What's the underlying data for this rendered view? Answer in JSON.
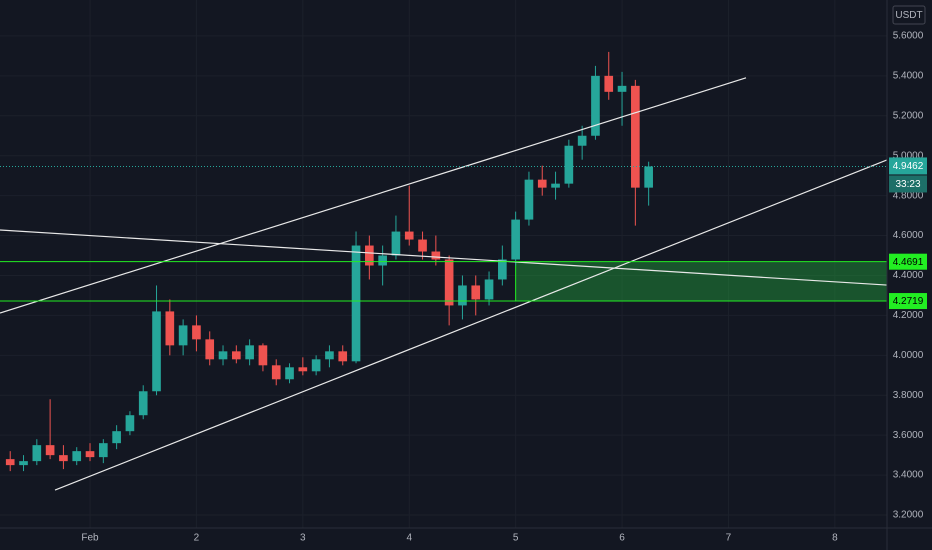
{
  "chart_data": {
    "type": "candlestick",
    "currency": "USDT",
    "x": [
      0.25,
      0.375,
      0.5,
      0.625,
      0.75,
      0.875,
      1.0,
      1.125,
      1.25,
      1.375,
      1.5,
      1.625,
      1.75,
      1.875,
      2.0,
      2.125,
      2.25,
      2.375,
      2.5,
      2.625,
      2.75,
      2.875,
      3.0,
      3.125,
      3.25,
      3.375,
      3.5,
      3.625,
      3.75,
      3.875,
      4.0,
      4.125,
      4.25,
      4.375,
      4.5,
      4.625,
      4.75,
      4.875,
      5.0,
      5.125,
      5.25,
      5.375,
      5.5,
      5.625,
      5.75,
      5.875,
      6.0,
      6.125,
      6.25
    ],
    "open": [
      3.48,
      3.45,
      3.47,
      3.55,
      3.5,
      3.47,
      3.52,
      3.49,
      3.56,
      3.62,
      3.7,
      3.82,
      4.22,
      4.05,
      4.15,
      4.08,
      3.98,
      4.02,
      3.98,
      4.05,
      3.95,
      3.88,
      3.94,
      3.92,
      3.98,
      4.02,
      3.97,
      4.55,
      4.45,
      4.5,
      4.62,
      4.58,
      4.52,
      4.48,
      4.25,
      4.35,
      4.28,
      4.38,
      4.48,
      4.68,
      4.88,
      4.84,
      4.86,
      5.05,
      5.1,
      5.4,
      5.32,
      5.35,
      4.84
    ],
    "high": [
      3.52,
      3.5,
      3.58,
      3.78,
      3.55,
      3.54,
      3.56,
      3.58,
      3.65,
      3.72,
      3.85,
      4.35,
      4.28,
      4.18,
      4.2,
      4.12,
      4.05,
      4.05,
      4.08,
      4.06,
      3.98,
      3.96,
      3.99,
      4.0,
      4.05,
      4.05,
      4.62,
      4.6,
      4.55,
      4.7,
      4.85,
      4.62,
      4.6,
      4.5,
      4.4,
      4.4,
      4.42,
      4.55,
      4.72,
      4.92,
      4.95,
      4.92,
      5.08,
      5.15,
      5.45,
      5.52,
      5.42,
      5.38,
      4.97
    ],
    "low": [
      3.42,
      3.42,
      3.45,
      3.48,
      3.43,
      3.45,
      3.47,
      3.46,
      3.53,
      3.6,
      3.68,
      3.8,
      4.0,
      4.0,
      4.02,
      3.95,
      3.95,
      3.96,
      3.95,
      3.92,
      3.85,
      3.86,
      3.9,
      3.9,
      3.94,
      3.95,
      3.96,
      4.38,
      4.35,
      4.48,
      4.55,
      4.48,
      4.45,
      4.15,
      4.18,
      4.2,
      4.25,
      4.35,
      4.45,
      4.65,
      4.8,
      4.78,
      4.84,
      4.98,
      5.08,
      5.28,
      5.15,
      4.65,
      4.75
    ],
    "close": [
      3.45,
      3.47,
      3.55,
      3.5,
      3.47,
      3.52,
      3.49,
      3.56,
      3.62,
      3.7,
      3.82,
      4.22,
      4.05,
      4.15,
      4.08,
      3.98,
      4.02,
      3.98,
      4.05,
      3.95,
      3.88,
      3.94,
      3.92,
      3.98,
      4.02,
      3.97,
      4.55,
      4.45,
      4.5,
      4.62,
      4.58,
      4.52,
      4.48,
      4.25,
      4.35,
      4.28,
      4.38,
      4.48,
      4.68,
      4.88,
      4.84,
      4.86,
      5.05,
      5.1,
      5.4,
      5.32,
      5.35,
      4.84,
      4.9462
    ],
    "up_color": "#26a69a",
    "down_color": "#ef5350",
    "xlim": [
      0.154,
      8.49
    ],
    "ylim": [
      3.135,
      5.78
    ],
    "xticks": [
      {
        "value": 1,
        "label": "Feb"
      },
      2,
      3,
      4,
      5,
      6,
      7,
      8
    ],
    "yticks": [
      {
        "value": 3.2,
        "label": "3.2000"
      },
      {
        "value": 3.4,
        "label": "3.4000"
      },
      {
        "value": 3.6,
        "label": "3.6000"
      },
      {
        "value": 3.8,
        "label": "3.8000"
      },
      {
        "value": 4.0,
        "label": "4.0000"
      },
      {
        "value": 4.2,
        "label": "4.2000"
      },
      {
        "value": 4.4,
        "label": "4.4000"
      },
      {
        "value": 4.6,
        "label": "4.6000"
      },
      {
        "value": 4.8,
        "label": "4.8000"
      },
      {
        "value": 5.0,
        "label": "5.0000"
      },
      {
        "value": 5.2,
        "label": "5.2000"
      },
      {
        "value": 5.4,
        "label": "5.4000"
      },
      {
        "value": 5.6,
        "label": "5.6000"
      }
    ],
    "grid": true,
    "trend_lines": [
      {
        "x": [
          0.154,
          7.165
        ],
        "y": [
          4.212,
          5.39
        ]
      },
      {
        "x": [
          0.671,
          8.49
        ],
        "y": [
          3.325,
          4.979
        ]
      },
      {
        "x": [
          0.154,
          8.49
        ],
        "y": [
          4.628,
          4.352
        ]
      }
    ],
    "levels": [
      {
        "value": 4.4691,
        "color": "#22ee22"
      },
      {
        "value": 4.2719,
        "color": "#22ee22"
      }
    ],
    "zone_start": 5,
    "last_price": 4.9462,
    "countdown": "33:23"
  }
}
